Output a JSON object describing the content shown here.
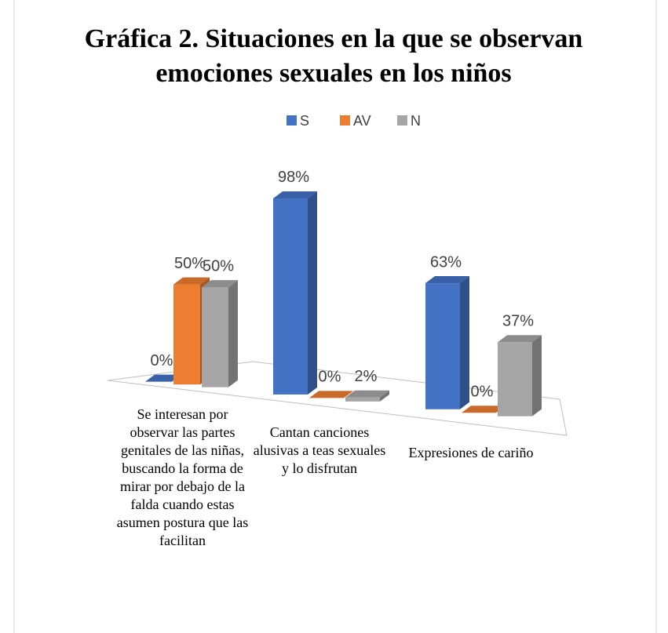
{
  "chart_data": {
    "type": "bar3d",
    "title": "Gráfica 2. Situaciones en la que se observan emociones sexuales en los niños",
    "categories": [
      "Se interesan por observar las partes genitales de las niñas, buscando la forma de mirar por debajo de la falda cuando estas asumen postura que las facilitan",
      "Cantan canciones alusivas a teas sexuales y lo disfrutan",
      "Expresiones de cariño"
    ],
    "series": [
      {
        "name": "S",
        "color": "#4472c4",
        "values": [
          0,
          98,
          63
        ],
        "value_labels": [
          "0%",
          "98%",
          "63%"
        ]
      },
      {
        "name": "AV",
        "color": "#ed7d31",
        "values": [
          50,
          0,
          0
        ],
        "value_labels": [
          "50%",
          "0%",
          "0%"
        ]
      },
      {
        "name": "N",
        "color": "#a5a5a5",
        "values": [
          50,
          2,
          37
        ],
        "value_labels": [
          "50%",
          "2%",
          "37%"
        ]
      }
    ],
    "legend": "top"
  }
}
